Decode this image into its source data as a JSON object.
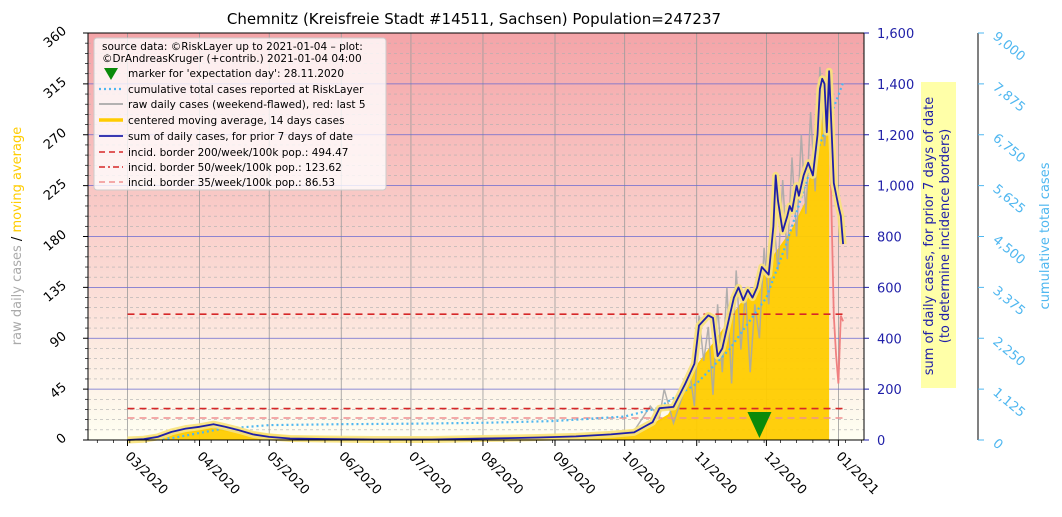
{
  "chart_data": {
    "type": "line",
    "title": "Chemnitz (Kreisfreie Stadt #14511, Sachsen) Population=247237",
    "ylabel_left_parts": [
      "raw daily cases",
      " / ",
      "moving average"
    ],
    "ylabel_right1_line1": "sum of daily cases, for prior 7 days of date",
    "ylabel_right1_line2": "(to determine incidence borders)",
    "ylabel_right2": "cumulative total cases",
    "x_ticks": [
      "03/2020",
      "04/2020",
      "05/2020",
      "06/2020",
      "07/2020",
      "08/2020",
      "09/2020",
      "10/2020",
      "11/2020",
      "12/2020",
      "01/2021"
    ],
    "y_left_ticks": [
      "0",
      "45",
      "90",
      "135",
      "180",
      "225",
      "270",
      "315",
      "360"
    ],
    "y_right1_ticks": [
      "0",
      "200",
      "400",
      "600",
      "800",
      "1,000",
      "1,200",
      "1,400",
      "1,600"
    ],
    "y_right2_ticks": [
      "0",
      "1,125",
      "2,250",
      "3,375",
      "4,500",
      "5,625",
      "6,750",
      "7,875",
      "9,000"
    ],
    "ylim_left": [
      0,
      360
    ],
    "ylim_right1": [
      0,
      1600
    ],
    "ylim_right2": [
      0,
      9000
    ],
    "xlim": [
      "2020-02-13",
      "2021-01-12"
    ],
    "legend": {
      "location": "top-left",
      "source_line1": "source data: ©RiskLayer up to 2021-01-04 – plot:",
      "source_line2": "©DrAndreasKruger (+contrib.) 2021-01-04 04:00",
      "entries": [
        "marker for 'expectation day': 28.11.2020",
        "cumulative total cases reported at RiskLayer",
        "raw daily cases (weekend-flawed), red: last 5",
        "centered moving average, 14 days cases",
        "sum of daily cases, for prior 7 days of date",
        "incid. border 200/week/100k pop.: 494.47",
        "incid. border 50/week/100k pop.: 123.62",
        "incid. border 35/week/100k pop.: 86.53"
      ]
    },
    "incidence_borders": [
      494.47,
      123.62,
      86.53
    ],
    "expectation_day": "2020-11-28",
    "sum7": [
      [
        "2020-03-01",
        0
      ],
      [
        "2020-03-08",
        3
      ],
      [
        "2020-03-14",
        12
      ],
      [
        "2020-03-20",
        32
      ],
      [
        "2020-03-26",
        45
      ],
      [
        "2020-04-01",
        52
      ],
      [
        "2020-04-07",
        62
      ],
      [
        "2020-04-12",
        52
      ],
      [
        "2020-04-18",
        38
      ],
      [
        "2020-04-24",
        22
      ],
      [
        "2020-05-01",
        12
      ],
      [
        "2020-05-10",
        6
      ],
      [
        "2020-05-25",
        4
      ],
      [
        "2020-06-15",
        2
      ],
      [
        "2020-07-10",
        2
      ],
      [
        "2020-08-01",
        6
      ],
      [
        "2020-08-15",
        8
      ],
      [
        "2020-08-25",
        10
      ],
      [
        "2020-09-10",
        14
      ],
      [
        "2020-09-25",
        22
      ],
      [
        "2020-10-05",
        30
      ],
      [
        "2020-10-10",
        55
      ],
      [
        "2020-10-13",
        70
      ],
      [
        "2020-10-16",
        125
      ],
      [
        "2020-10-22",
        130
      ],
      [
        "2020-10-27",
        220
      ],
      [
        "2020-10-31",
        300
      ],
      [
        "2020-11-02",
        450
      ],
      [
        "2020-11-06",
        490
      ],
      [
        "2020-11-08",
        480
      ],
      [
        "2020-11-10",
        330
      ],
      [
        "2020-11-12",
        360
      ],
      [
        "2020-11-15",
        480
      ],
      [
        "2020-11-17",
        560
      ],
      [
        "2020-11-19",
        600
      ],
      [
        "2020-11-21",
        550
      ],
      [
        "2020-11-23",
        590
      ],
      [
        "2020-11-25",
        560
      ],
      [
        "2020-11-27",
        600
      ],
      [
        "2020-11-29",
        680
      ],
      [
        "2020-12-01",
        660
      ],
      [
        "2020-12-02",
        650
      ],
      [
        "2020-12-04",
        840
      ],
      [
        "2020-12-05",
        1040
      ],
      [
        "2020-12-06",
        940
      ],
      [
        "2020-12-08",
        820
      ],
      [
        "2020-12-10",
        880
      ],
      [
        "2020-12-11",
        920
      ],
      [
        "2020-12-12",
        900
      ],
      [
        "2020-12-14",
        1000
      ],
      [
        "2020-12-15",
        960
      ],
      [
        "2020-12-17",
        1040
      ],
      [
        "2020-12-19",
        1090
      ],
      [
        "2020-12-21",
        1040
      ],
      [
        "2020-12-23",
        1200
      ],
      [
        "2020-12-24",
        1380
      ],
      [
        "2020-12-25",
        1420
      ],
      [
        "2020-12-26",
        1400
      ],
      [
        "2020-12-27",
        1210
      ],
      [
        "2020-12-28",
        1450
      ],
      [
        "2020-12-30",
        1010
      ],
      [
        "2021-01-01",
        920
      ],
      [
        "2021-01-02",
        880
      ],
      [
        "2021-01-03",
        770
      ]
    ],
    "moving_avg_14": [
      [
        "2020-03-01",
        0
      ],
      [
        "2020-03-20",
        5
      ],
      [
        "2020-04-05",
        10
      ],
      [
        "2020-04-20",
        7
      ],
      [
        "2020-05-10",
        3
      ],
      [
        "2020-06-15",
        1
      ],
      [
        "2020-08-01",
        2
      ],
      [
        "2020-09-01",
        3
      ],
      [
        "2020-09-25",
        5
      ],
      [
        "2020-10-10",
        10
      ],
      [
        "2020-10-20",
        22
      ],
      [
        "2020-11-01",
        65
      ],
      [
        "2020-11-10",
        90
      ],
      [
        "2020-11-20",
        120
      ],
      [
        "2020-11-28",
        138
      ],
      [
        "2020-12-05",
        165
      ],
      [
        "2020-12-12",
        185
      ],
      [
        "2020-12-18",
        210
      ],
      [
        "2020-12-23",
        265
      ],
      [
        "2020-12-26",
        290
      ],
      [
        "2020-12-28",
        300
      ]
    ],
    "cumulative": [
      [
        "2020-03-01",
        0
      ],
      [
        "2020-03-20",
        40
      ],
      [
        "2020-04-10",
        240
      ],
      [
        "2020-05-01",
        330
      ],
      [
        "2020-06-01",
        350
      ],
      [
        "2020-07-01",
        360
      ],
      [
        "2020-08-01",
        380
      ],
      [
        "2020-09-01",
        420
      ],
      [
        "2020-10-01",
        520
      ],
      [
        "2020-10-15",
        700
      ],
      [
        "2020-11-01",
        1250
      ],
      [
        "2020-11-15",
        2000
      ],
      [
        "2020-12-01",
        3150
      ],
      [
        "2020-12-10",
        4400
      ],
      [
        "2020-12-20",
        6000
      ],
      [
        "2021-01-03",
        7900
      ]
    ],
    "raw_daily": [
      [
        "2020-03-01",
        0
      ],
      [
        "2020-03-15",
        3
      ],
      [
        "2020-03-25",
        9
      ],
      [
        "2020-04-05",
        12
      ],
      [
        "2020-04-15",
        8
      ],
      [
        "2020-04-25",
        4
      ],
      [
        "2020-05-10",
        1
      ],
      [
        "2020-06-10",
        0
      ],
      [
        "2020-07-15",
        0
      ],
      [
        "2020-08-10",
        2
      ],
      [
        "2020-09-10",
        3
      ],
      [
        "2020-09-25",
        5
      ],
      [
        "2020-10-05",
        8
      ],
      [
        "2020-10-12",
        30
      ],
      [
        "2020-10-16",
        20
      ],
      [
        "2020-10-18",
        45
      ],
      [
        "2020-10-22",
        15
      ],
      [
        "2020-10-26",
        40
      ],
      [
        "2020-10-29",
        60
      ],
      [
        "2020-10-31",
        30
      ],
      [
        "2020-11-02",
        110
      ],
      [
        "2020-11-04",
        70
      ],
      [
        "2020-11-06",
        100
      ],
      [
        "2020-11-08",
        40
      ],
      [
        "2020-11-10",
        120
      ],
      [
        "2020-11-12",
        60
      ],
      [
        "2020-11-14",
        135
      ],
      [
        "2020-11-16",
        50
      ],
      [
        "2020-11-18",
        150
      ],
      [
        "2020-11-20",
        80
      ],
      [
        "2020-11-22",
        130
      ],
      [
        "2020-11-24",
        60
      ],
      [
        "2020-11-26",
        120
      ],
      [
        "2020-11-28",
        90
      ],
      [
        "2020-11-30",
        170
      ],
      [
        "2020-12-02",
        120
      ],
      [
        "2020-12-04",
        200
      ],
      [
        "2020-12-06",
        150
      ],
      [
        "2020-12-08",
        230
      ],
      [
        "2020-12-10",
        160
      ],
      [
        "2020-12-12",
        250
      ],
      [
        "2020-12-14",
        180
      ],
      [
        "2020-12-16",
        270
      ],
      [
        "2020-12-18",
        200
      ],
      [
        "2020-12-20",
        290
      ],
      [
        "2020-12-22",
        220
      ],
      [
        "2020-12-24",
        330
      ],
      [
        "2020-12-26",
        260
      ],
      [
        "2020-12-28",
        300
      ]
    ],
    "raw_daily_last5": [
      [
        "2020-12-30",
        110
      ],
      [
        "2020-12-31",
        75
      ],
      [
        "2021-01-01",
        50
      ],
      [
        "2021-01-02",
        110
      ],
      [
        "2021-01-03",
        105
      ]
    ],
    "colors": {
      "bg_top": "#f4a4a8",
      "bg_bottom": "#fffff2",
      "sum7": "#1f1fa8",
      "sum7_halo": "#f8e27a",
      "moving_avg": "#ffcc00",
      "cumulative": "#4fb7f0",
      "raw": "#a8a8a8",
      "raw_last5": "#f08080",
      "border200": "#d62728",
      "border50": "#d62728",
      "border35": "#f09090",
      "marker": "#0a8a0a",
      "right1_axis": "#1f1fa8",
      "right2_axis": "#4fb7f0",
      "left_label_raw": "#aaaaaa",
      "left_label_avg": "#ffcc00",
      "label_box": "#ffffa8"
    }
  }
}
